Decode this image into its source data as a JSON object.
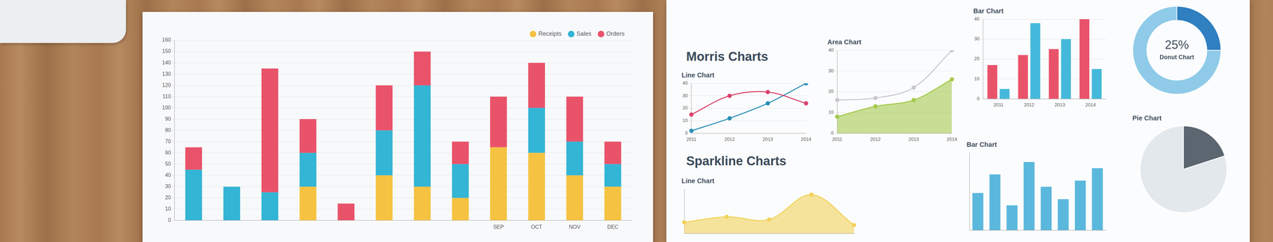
{
  "headings": [
    "Morris Charts",
    "Sparkline Charts"
  ],
  "chart_data": [
    {
      "type": "bar",
      "stacked": true,
      "categories": [
        null,
        null,
        null,
        null,
        null,
        null,
        null,
        null,
        "SEP",
        "OCT",
        "NOV",
        "DEC"
      ],
      "series": [
        {
          "name": "Receipts",
          "color": "#f5c341",
          "values": [
            0,
            0,
            0,
            30,
            0,
            40,
            30,
            20,
            65,
            60,
            40,
            30
          ]
        },
        {
          "name": "Sales",
          "color": "#33b5d5",
          "values": [
            45,
            30,
            25,
            30,
            0,
            40,
            90,
            30,
            0,
            40,
            30,
            20
          ]
        },
        {
          "name": "Orders",
          "color": "#e9536a",
          "values": [
            20,
            0,
            110,
            30,
            15,
            40,
            30,
            20,
            45,
            40,
            40,
            20
          ]
        }
      ],
      "ylim": [
        0,
        160
      ],
      "yticks": [
        0,
        10,
        20,
        30,
        40,
        50,
        60,
        70,
        80,
        90,
        100,
        110,
        120,
        130,
        140,
        150,
        160
      ],
      "grid": true,
      "legend": "top-right"
    },
    {
      "type": "line",
      "title": "Line Chart",
      "categories": [
        "2011",
        "2012",
        "2013",
        "2014"
      ],
      "series": [
        {
          "color": "#d9446d",
          "values": [
            15,
            30,
            33,
            24
          ],
          "marker": "circle"
        },
        {
          "color": "#2a8fb7",
          "values": [
            2,
            12,
            24,
            40
          ],
          "marker": "circle"
        }
      ],
      "ylim": [
        0,
        40
      ],
      "yticks": [
        0,
        10,
        20,
        30,
        40
      ],
      "grid": true
    },
    {
      "type": "area",
      "title": "Area Chart",
      "categories": [
        "2011",
        "2012",
        "2013",
        "2014"
      ],
      "series": [
        {
          "type": "line",
          "color": "#c9c9cf",
          "values": [
            16,
            17,
            22,
            40
          ],
          "marker": "circle"
        },
        {
          "type": "area",
          "color": "#a5c94f",
          "values": [
            8,
            13,
            16,
            26
          ],
          "marker": "circle"
        }
      ],
      "ylim": [
        0,
        40
      ],
      "yticks": [
        0,
        10,
        20,
        30,
        40
      ],
      "grid": true
    },
    {
      "type": "bar",
      "title": "Bar Chart",
      "categories": [
        "2011",
        "2012",
        "2013",
        "2014"
      ],
      "series": [
        {
          "color": "#e9536a",
          "values": [
            17,
            22,
            25,
            40
          ]
        },
        {
          "color": "#45b9db",
          "values": [
            5,
            38,
            30,
            15
          ]
        }
      ],
      "ylim": [
        0,
        40
      ],
      "yticks": [
        0,
        10,
        20,
        30,
        40
      ],
      "grid": true
    },
    {
      "type": "doughnut",
      "title": "Donut Chart",
      "values": [
        25,
        75
      ],
      "value_labels": [
        "25%",
        null
      ],
      "colors": [
        "#2f7fc1",
        "#8fcbe8"
      ]
    },
    {
      "type": "area",
      "title": "Line Chart",
      "categories": [
        null,
        null,
        null,
        null,
        null
      ],
      "values": [
        4,
        6,
        5,
        14,
        3
      ],
      "color": "#f2d25a",
      "marker": "circle",
      "ylim": [
        0,
        16
      ],
      "tick_labels": false
    },
    {
      "type": "bar",
      "title": "Bar Chart",
      "categories": [
        null,
        null,
        null,
        null,
        null,
        null,
        null,
        null
      ],
      "values": [
        12,
        18,
        8,
        22,
        14,
        10,
        16,
        20
      ],
      "color": "#5bb8dd",
      "ylim": [
        0,
        25
      ],
      "tick_labels": false
    },
    {
      "type": "pie",
      "title": "Pie Chart",
      "values": [
        20,
        80
      ],
      "colors": [
        "#5c6670",
        "#e3e8ec"
      ]
    }
  ]
}
